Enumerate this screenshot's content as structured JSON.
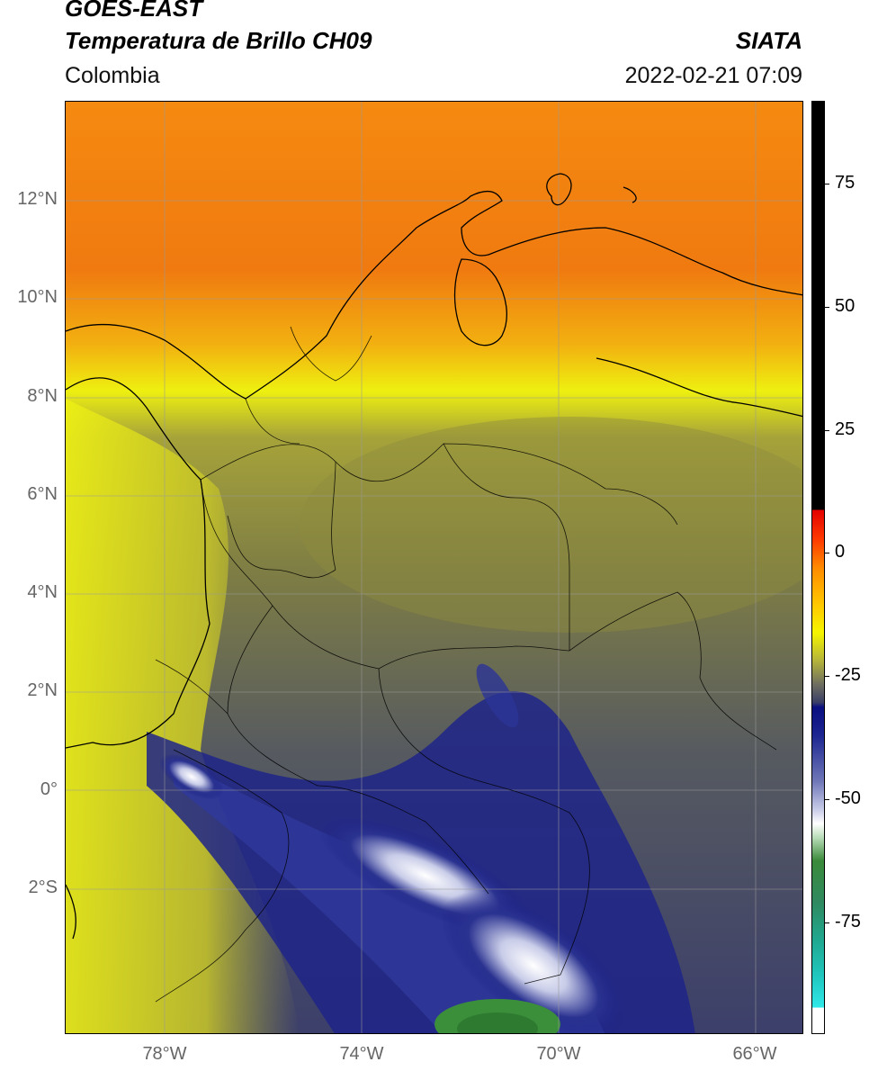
{
  "header": {
    "satellite": "GOES-EAST",
    "product": "Temperatura de Brillo CH09",
    "org": "SIATA",
    "region": "Colombia",
    "datetime": "2022-02-21 07:09"
  },
  "axes": {
    "lat_labels": [
      "12°N",
      "10°N",
      "8°N",
      "6°N",
      "4°N",
      "2°N",
      "0°",
      "2°S"
    ],
    "lon_labels": [
      "78°W",
      "74°W",
      "70°W",
      "66°W"
    ]
  },
  "colorbar": {
    "ticks": [
      "75",
      "50",
      "25",
      "0",
      "-25",
      "-50",
      "-75"
    ]
  },
  "colors": {
    "orange": "#f07a10",
    "yellow": "#f0f010",
    "olive": "#8f8f3a",
    "gray_blue": "#4e5466",
    "navy": "#1a1f86",
    "white": "#ffffff",
    "green": "#3a8a3a"
  }
}
